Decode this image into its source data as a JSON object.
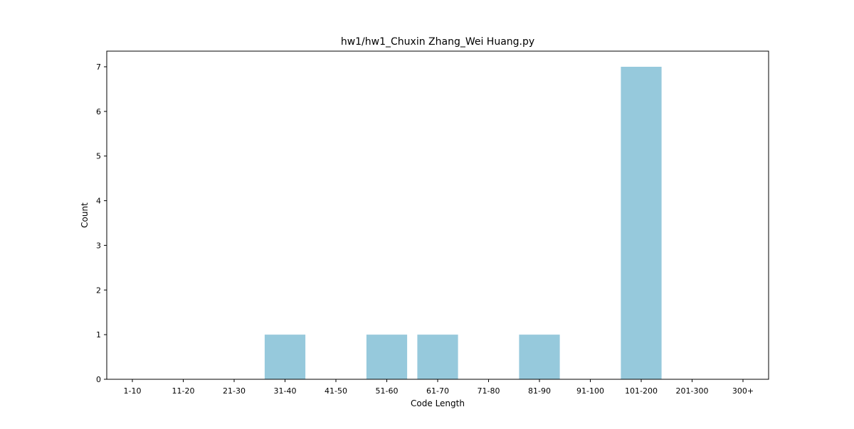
{
  "chart_data": {
    "type": "bar",
    "title": "hw1/hw1_Chuxin Zhang_Wei Huang.py",
    "xlabel": "Code Length",
    "ylabel": "Count",
    "categories": [
      "1-10",
      "11-20",
      "21-30",
      "31-40",
      "41-50",
      "51-60",
      "61-70",
      "71-80",
      "81-90",
      "91-100",
      "101-200",
      "201-300",
      "300+"
    ],
    "values": [
      0,
      0,
      0,
      1,
      0,
      1,
      1,
      0,
      1,
      0,
      7,
      0,
      0
    ],
    "ylim": [
      0,
      7.35
    ],
    "yticks": [
      0,
      1,
      2,
      3,
      4,
      5,
      6,
      7
    ],
    "grid": false,
    "legend": "none",
    "colors": {
      "bar": "#96c9dc",
      "axes": "#000000",
      "text": "#000000"
    }
  }
}
